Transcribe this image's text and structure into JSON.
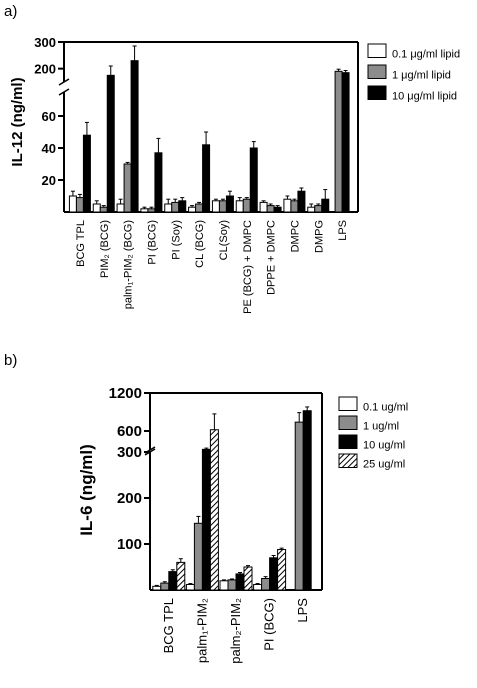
{
  "chart_data": [
    {
      "panel_label": "a)",
      "type": "bar",
      "ylabel": "IL-12 (ng/ml)",
      "y_axis_break": true,
      "y_ticks_lower": [
        "20",
        "40",
        "60"
      ],
      "y_ticks_upper": [
        "200",
        "300"
      ],
      "ylim_lower": [
        0,
        75
      ],
      "ylim_upper": [
        150,
        300
      ],
      "legend_position": "top-right",
      "categories": [
        "BCG TPL",
        "PIM₂ (BCG)",
        "palm₁-PIM₂ (BCG)",
        "PI (BCG)",
        "PI (Soy)",
        "CL (BCG)",
        "CL(Soy)",
        "PE (BCG) + DMPC",
        "DPPE + DMPC",
        "DMPC",
        "DMPG",
        "LPS"
      ],
      "series": [
        {
          "name": "0.1 μg/ml lipid",
          "color": "#ffffff",
          "values": [
            10,
            5,
            5,
            2,
            5,
            3,
            7,
            7,
            6,
            8,
            3,
            null
          ],
          "errors": [
            3,
            2,
            3,
            1,
            3,
            1,
            1,
            2,
            1,
            2,
            2,
            null
          ]
        },
        {
          "name": "1 μg/ml lipid",
          "color": "#8c8c8c",
          "values": [
            9,
            3,
            30,
            2,
            6,
            5,
            7,
            8,
            4,
            7,
            4,
            190
          ],
          "errors": [
            2,
            1,
            1,
            1,
            2,
            1,
            1,
            1,
            1,
            1,
            1,
            8
          ]
        },
        {
          "name": "10 μg/ml lipid",
          "color": "#000000",
          "values": [
            48,
            175,
            230,
            37,
            7,
            42,
            10,
            40,
            3,
            13,
            8,
            185
          ],
          "errors": [
            8,
            35,
            55,
            9,
            2,
            8,
            3,
            4,
            1,
            2,
            6,
            8
          ]
        }
      ]
    },
    {
      "panel_label": "b)",
      "type": "bar",
      "ylabel": "IL-6 (ng/ml)",
      "y_axis_break": true,
      "y_ticks_lower": [
        "100",
        "200",
        "300"
      ],
      "y_ticks_upper": [
        "600",
        "1200"
      ],
      "ylim_lower": [
        0,
        300
      ],
      "ylim_upper": [
        300,
        1200
      ],
      "legend_position": "top-right",
      "categories": [
        "BCG TPL",
        "palm₁-PIM₂",
        "palm₂-PIM₂",
        "PI (BCG)",
        "LPS"
      ],
      "series": [
        {
          "name": "0.1 ug/ml",
          "color": "#ffffff",
          "pattern": "none",
          "values": [
            8,
            12,
            20,
            12,
            null
          ],
          "errors": [
            2,
            2,
            2,
            2,
            null
          ]
        },
        {
          "name": "1 ug/ml",
          "color": "#8c8c8c",
          "pattern": "none",
          "values": [
            15,
            145,
            22,
            25,
            740
          ],
          "errors": [
            3,
            15,
            2,
            4,
            150
          ]
        },
        {
          "name": "10 ug/ml",
          "color": "#000000",
          "pattern": "none",
          "values": [
            40,
            310,
            35,
            70,
            920
          ],
          "errors": [
            4,
            20,
            3,
            5,
            60
          ]
        },
        {
          "name": "25 ug/ml",
          "color": "#ffffff",
          "pattern": "hatch",
          "values": [
            60,
            620,
            50,
            88,
            null
          ],
          "errors": [
            8,
            250,
            3,
            3,
            null
          ]
        }
      ]
    }
  ]
}
